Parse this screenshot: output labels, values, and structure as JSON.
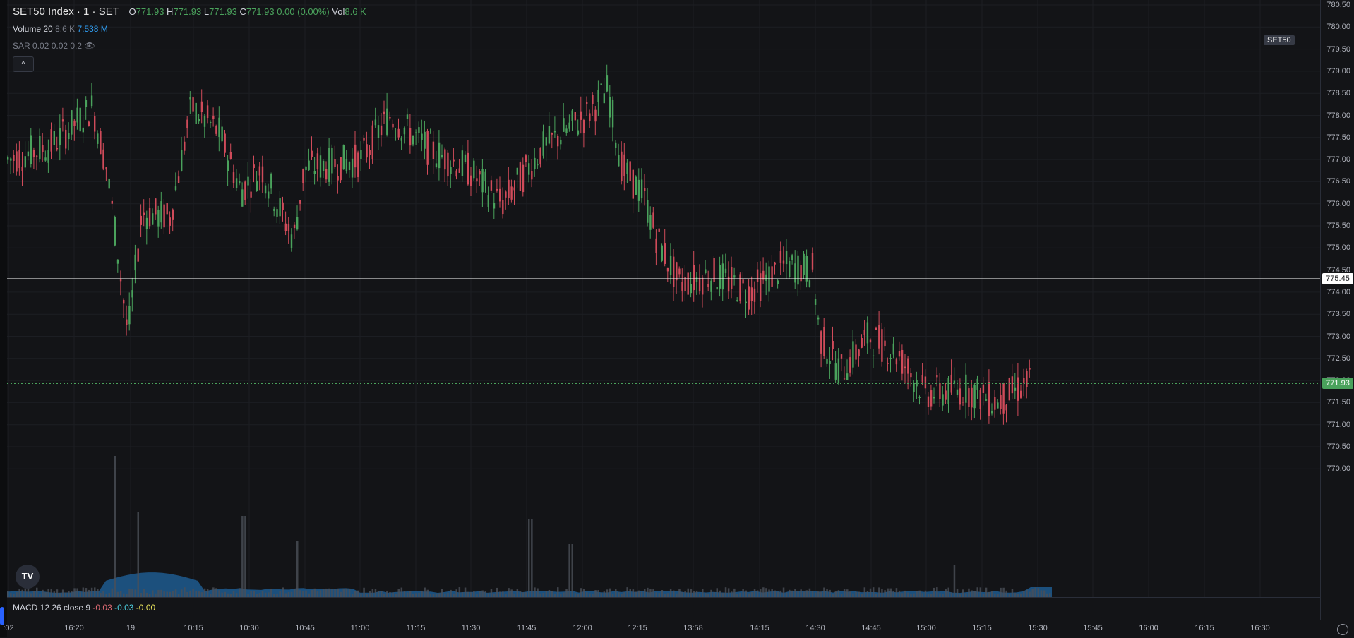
{
  "header": {
    "symbol": "SET50 Index · 1 · SET",
    "open_label": "O",
    "open": "771.93",
    "high_label": "H",
    "high": "771.93",
    "low_label": "L",
    "low": "771.93",
    "close_label": "C",
    "close": "771.93",
    "change": "0.00 (0.00%)",
    "vol_label": "Vol",
    "vol": "8.6 K"
  },
  "volume_legend": {
    "name": "Volume 20",
    "value1": "8.6 K",
    "value2": "7.538 M"
  },
  "sar_legend": {
    "name": "SAR 0.02 0.02 0.2"
  },
  "macd_legend": {
    "name": "MACD 12 26 close 9",
    "v1": "-0.03",
    "v2": "-0.03",
    "v3": "-0.00"
  },
  "collapse_symbol": "^",
  "symbol_badge": "SET50",
  "logo_text": "TV",
  "price_axis": {
    "labels": [
      "780.50",
      "780.00",
      "779.50",
      "779.00",
      "778.50",
      "778.00",
      "777.50",
      "777.00",
      "776.50",
      "776.00",
      "775.50",
      "775.00",
      "774.50",
      "774.00",
      "773.50",
      "773.00",
      "772.50",
      "772.00",
      "771.50",
      "771.00",
      "770.50",
      "770.00"
    ],
    "current_price": "771.93",
    "crosshair_price": "775.45"
  },
  "time_axis": {
    "labels": [
      ":02",
      "16:20",
      "19",
      "10:15",
      "10:30",
      "10:45",
      "11:00",
      "11:15",
      "11:30",
      "11:45",
      "12:00",
      "12:15",
      "13:58",
      "14:15",
      "14:30",
      "14:45",
      "15:00",
      "15:15",
      "15:30",
      "15:45",
      "16:00",
      "16:15",
      "16:30"
    ]
  },
  "colors": {
    "up": "#4aa25c",
    "down": "#d04b5a",
    "volume_area": "#1f5a8f",
    "volume_bar": "#4b4f58",
    "grid": "#1c1e23"
  }
}
